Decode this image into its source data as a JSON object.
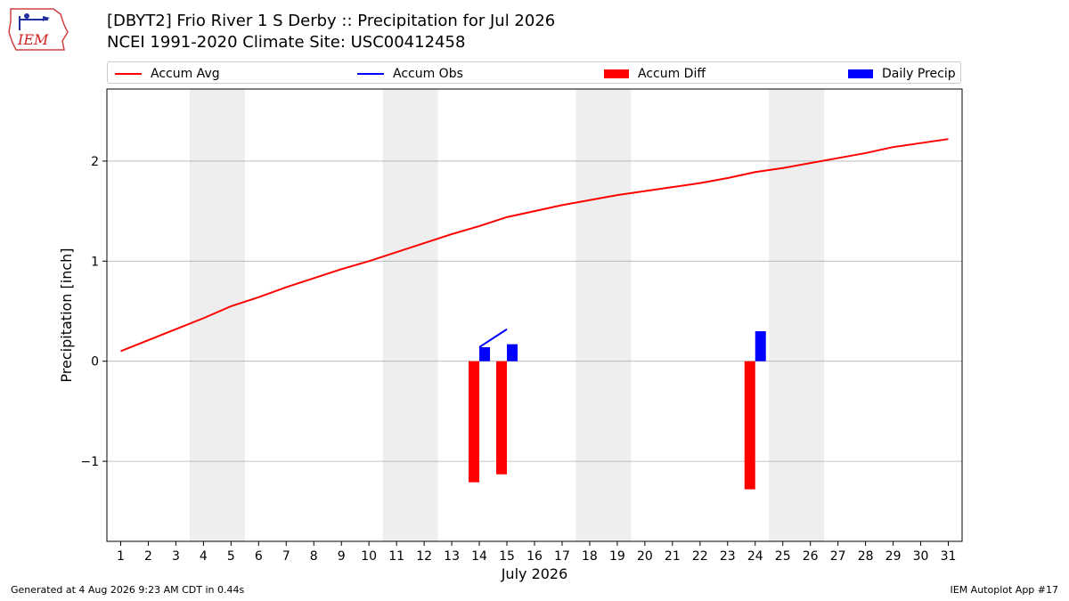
{
  "header": {
    "title_line1": "[DBYT2] Frio River 1 S Derby :: Precipitation for Jul 2026",
    "title_line2": "NCEI 1991-2020 Climate Site: USC00412458"
  },
  "logo": {
    "text": "IEM",
    "icon": "iem-logo-icon"
  },
  "legend": {
    "items": [
      {
        "label": "Accum Avg",
        "color": "#ff0000",
        "kind": "line"
      },
      {
        "label": "Accum Obs",
        "color": "#0000ff",
        "kind": "line"
      },
      {
        "label": "Accum Diff",
        "color": "#ff0000",
        "kind": "box"
      },
      {
        "label": "Daily Precip",
        "color": "#0000ff",
        "kind": "box"
      }
    ]
  },
  "footer": {
    "left": "Generated at 4 Aug 2026 9:23 AM CDT in 0.44s",
    "right": "IEM Autoplot App #17"
  },
  "chart_data": {
    "type": "bar",
    "xlabel": "July 2026",
    "ylabel": "Precipitation [inch]",
    "ylim": [
      -1.8,
      2.72
    ],
    "xlim": [
      0.5,
      31.5
    ],
    "x": [
      1,
      2,
      3,
      4,
      5,
      6,
      7,
      8,
      9,
      10,
      11,
      12,
      13,
      14,
      15,
      16,
      17,
      18,
      19,
      20,
      21,
      22,
      23,
      24,
      25,
      26,
      27,
      28,
      29,
      30,
      31
    ],
    "x_tick_labels": [
      "1",
      "2",
      "3",
      "4",
      "5",
      "6",
      "7",
      "8",
      "9",
      "10",
      "11",
      "12",
      "13",
      "14",
      "15",
      "16",
      "17",
      "18",
      "19",
      "20",
      "21",
      "22",
      "23",
      "24",
      "25",
      "26",
      "27",
      "28",
      "29",
      "30",
      "31"
    ],
    "y_ticks": [
      -1,
      0,
      1,
      2
    ],
    "y_tick_labels": [
      "−1",
      "0",
      "1",
      "2"
    ],
    "grid": "horizontal",
    "weekend_shading": [
      [
        3.5,
        5.5
      ],
      [
        10.5,
        12.5
      ],
      [
        17.5,
        19.5
      ],
      [
        24.5,
        26.5
      ]
    ],
    "accum_avg": [
      0.1,
      0.21,
      0.32,
      0.43,
      0.55,
      0.64,
      0.74,
      0.83,
      0.92,
      1.0,
      1.09,
      1.18,
      1.27,
      1.35,
      1.44,
      1.5,
      1.56,
      1.61,
      1.66,
      1.7,
      1.74,
      1.78,
      1.83,
      1.89,
      1.93,
      1.98,
      2.03,
      2.08,
      2.14,
      2.18,
      2.22
    ],
    "accum_obs": {
      "x": [
        14,
        15
      ],
      "values": [
        0.14,
        0.32
      ]
    },
    "accum_diff": {
      "x": [
        14,
        15,
        24
      ],
      "values": [
        -1.21,
        -1.13,
        -1.28
      ]
    },
    "daily_precip": {
      "x": [
        14,
        15,
        24
      ],
      "values": [
        0.14,
        0.17,
        0.3
      ]
    },
    "colors": {
      "avg": "#ff0000",
      "obs": "#0000ff",
      "diff": "#ff0000",
      "daily": "#0000ff",
      "shade": "#eeeeee",
      "grid": "#b0b0b0"
    }
  }
}
